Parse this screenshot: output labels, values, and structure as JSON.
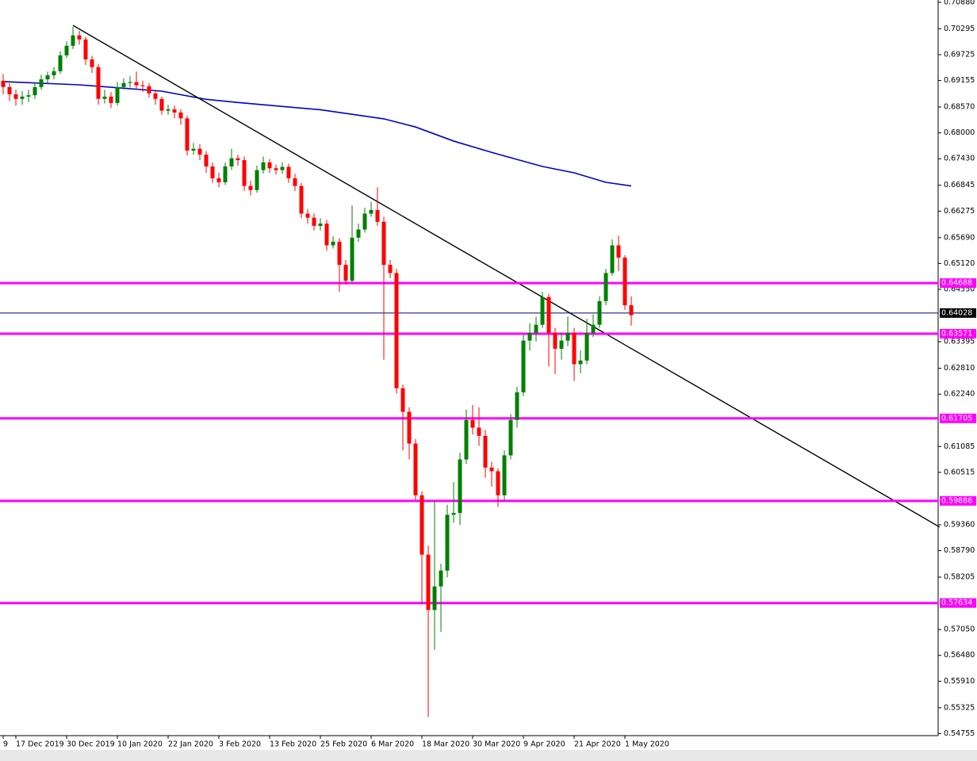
{
  "chart_data": {
    "type": "candlestick",
    "categories": [
      "9",
      null,
      "17 Dec 2019",
      null,
      null,
      null,
      null,
      null,
      null,
      null,
      "30 Dec 2019",
      null,
      null,
      null,
      null,
      null,
      null,
      null,
      "10 Jan 2020",
      null,
      null,
      null,
      null,
      null,
      null,
      null,
      "22 Jan 2020",
      null,
      null,
      null,
      null,
      null,
      null,
      null,
      "3 Feb 2020",
      null,
      null,
      null,
      null,
      null,
      null,
      null,
      "13 Feb 2020",
      null,
      null,
      null,
      null,
      null,
      null,
      null,
      "25 Feb 2020",
      null,
      null,
      null,
      null,
      null,
      null,
      null,
      "6 Mar 2020",
      null,
      null,
      null,
      null,
      null,
      null,
      null,
      "18 Mar 2020",
      null,
      null,
      null,
      null,
      null,
      null,
      null,
      "30 Mar 2020",
      null,
      null,
      null,
      null,
      null,
      null,
      null,
      "9 Apr 2020",
      null,
      null,
      null,
      null,
      null,
      null,
      null,
      "21 Apr 2020",
      null,
      null,
      null,
      null,
      null,
      null,
      null,
      "1 May 2020",
      null
    ],
    "open": [
      0.6915,
      0.6901,
      0.6885,
      0.6875,
      0.688,
      0.6883,
      0.6901,
      0.6918,
      0.6927,
      0.6936,
      0.6971,
      0.6992,
      0.7015,
      0.7006,
      0.6962,
      0.6945,
      0.6875,
      0.688,
      0.6866,
      0.6901,
      0.691,
      0.6912,
      0.6905,
      0.6903,
      0.6887,
      0.6875,
      0.6849,
      0.6852,
      0.6845,
      0.6832,
      0.6761,
      0.6765,
      0.6752,
      0.6726,
      0.67,
      0.6691,
      0.6726,
      0.6744,
      0.674,
      0.6683,
      0.6674,
      0.6718,
      0.6735,
      0.6722,
      0.6718,
      0.6725,
      0.67,
      0.6683,
      0.6622,
      0.6613,
      0.6595,
      0.66,
      0.6552,
      0.656,
      0.6509,
      0.6474,
      0.6569,
      0.6587,
      0.6622,
      0.663,
      0.6604,
      0.6509,
      0.6491,
      0.6237,
      0.6185,
      0.6115,
      0.6001,
      0.587,
      0.5748,
      0.58,
      0.5835,
      0.5958,
      0.5962,
      0.608,
      0.6167,
      0.615,
      0.6132,
      0.6062,
      0.6054,
      0.6001,
      0.6089,
      0.6167,
      0.6228,
      0.6342,
      0.6359,
      0.6377,
      0.6438,
      0.6359,
      0.6324,
      0.6342,
      0.6359,
      0.629,
      0.6298,
      0.6359,
      0.6377,
      0.6429,
      0.6491,
      0.6552,
      0.6525,
      0.642
    ],
    "high": [
      0.693,
      0.691,
      0.6895,
      0.6892,
      0.6895,
      0.6912,
      0.6928,
      0.6935,
      0.6945,
      0.698,
      0.7002,
      0.7034,
      0.7025,
      0.7012,
      0.697,
      0.6952,
      0.6895,
      0.689,
      0.6912,
      0.692,
      0.6925,
      0.6935,
      0.6915,
      0.691,
      0.6895,
      0.688,
      0.6862,
      0.686,
      0.6852,
      0.6838,
      0.6778,
      0.6775,
      0.676,
      0.6735,
      0.6712,
      0.6735,
      0.6765,
      0.6752,
      0.6748,
      0.6695,
      0.6728,
      0.6748,
      0.6742,
      0.673,
      0.6735,
      0.6732,
      0.671,
      0.669,
      0.6632,
      0.6622,
      0.6612,
      0.6608,
      0.6572,
      0.6568,
      0.652,
      0.664,
      0.66,
      0.6635,
      0.6648,
      0.668,
      0.6615,
      0.652,
      0.65,
      0.6245,
      0.6195,
      0.6125,
      0.601,
      0.589,
      0.599,
      0.585,
      0.598,
      0.603,
      0.6095,
      0.619,
      0.62,
      0.6195,
      0.6145,
      0.6075,
      0.606,
      0.61,
      0.618,
      0.624,
      0.6355,
      0.638,
      0.6395,
      0.645,
      0.6445,
      0.637,
      0.636,
      0.6395,
      0.637,
      0.632,
      0.639,
      0.64,
      0.644,
      0.65,
      0.6565,
      0.6573,
      0.653,
      0.644
    ],
    "low": [
      0.6885,
      0.687,
      0.686,
      0.6862,
      0.6868,
      0.6875,
      0.6895,
      0.691,
      0.6918,
      0.693,
      0.6965,
      0.6985,
      0.6995,
      0.695,
      0.6932,
      0.6862,
      0.6865,
      0.6855,
      0.686,
      0.6895,
      0.69,
      0.6895,
      0.689,
      0.6878,
      0.6862,
      0.684,
      0.684,
      0.6832,
      0.6818,
      0.675,
      0.6752,
      0.674,
      0.6712,
      0.669,
      0.668,
      0.6685,
      0.6718,
      0.6728,
      0.6672,
      0.6662,
      0.6668,
      0.671,
      0.6712,
      0.6708,
      0.671,
      0.669,
      0.6672,
      0.6612,
      0.66,
      0.6585,
      0.6585,
      0.654,
      0.6545,
      0.645,
      0.6465,
      0.647,
      0.656,
      0.658,
      0.6615,
      0.6595,
      0.63,
      0.648,
      0.6225,
      0.61,
      0.608,
      0.599,
      0.576,
      0.5512,
      0.566,
      0.57,
      0.582,
      0.594,
      0.5935,
      0.607,
      0.6135,
      0.611,
      0.604,
      0.602,
      0.5975,
      0.599,
      0.608,
      0.615,
      0.622,
      0.632,
      0.634,
      0.637,
      0.6285,
      0.6268,
      0.63,
      0.633,
      0.6253,
      0.627,
      0.629,
      0.635,
      0.637,
      0.642,
      0.6485,
      0.6495,
      0.641,
      0.6375
    ],
    "close": [
      0.6901,
      0.6885,
      0.6875,
      0.688,
      0.6883,
      0.6901,
      0.6918,
      0.6927,
      0.6936,
      0.6971,
      0.6992,
      0.7015,
      0.7006,
      0.6962,
      0.6945,
      0.6875,
      0.688,
      0.6866,
      0.6901,
      0.691,
      0.6912,
      0.6905,
      0.6903,
      0.6887,
      0.6875,
      0.6849,
      0.6852,
      0.6845,
      0.6832,
      0.6761,
      0.6765,
      0.6752,
      0.6726,
      0.67,
      0.6691,
      0.6726,
      0.6744,
      0.674,
      0.6683,
      0.6674,
      0.6718,
      0.6735,
      0.6722,
      0.6718,
      0.6725,
      0.67,
      0.6683,
      0.6622,
      0.6613,
      0.6595,
      0.66,
      0.6552,
      0.656,
      0.6509,
      0.6474,
      0.6569,
      0.6587,
      0.6622,
      0.663,
      0.6604,
      0.6509,
      0.6491,
      0.6237,
      0.6185,
      0.6115,
      0.6001,
      0.587,
      0.5748,
      0.58,
      0.5835,
      0.5958,
      0.5962,
      0.608,
      0.6167,
      0.615,
      0.6132,
      0.6062,
      0.6054,
      0.6001,
      0.6089,
      0.6167,
      0.6228,
      0.6342,
      0.6359,
      0.6377,
      0.6438,
      0.6359,
      0.6324,
      0.6342,
      0.6359,
      0.629,
      0.6298,
      0.6359,
      0.6377,
      0.6429,
      0.6491,
      0.6552,
      0.6525,
      0.642,
      0.6398
    ],
    "up_color": "#008000",
    "down_color": "#ff0000",
    "ylim": [
      0.5471,
      0.7093
    ],
    "yticks": [
      {
        "value": 0.7088,
        "label": "0.70880"
      },
      0.70295,
      0.69725,
      0.69155,
      {
        "value": 0.6857,
        "label": "0.68570"
      },
      {
        "value": 0.68,
        "label": "0.68000"
      },
      {
        "value": 0.6743,
        "label": "0.67430"
      },
      0.66845,
      0.66275,
      {
        "value": 0.6569,
        "label": "0.65690"
      },
      {
        "value": 0.6512,
        "label": "0.65120"
      },
      {
        "value": 0.6455,
        "label": "0.64550"
      },
      0.63395,
      {
        "value": 0.6281,
        "label": "0.62810"
      },
      {
        "value": 0.6224,
        "label": "0.62240"
      },
      0.61085,
      0.60515,
      {
        "value": 0.5936,
        "label": "0.59360"
      },
      {
        "value": 0.5879,
        "label": "0.58790"
      },
      0.58205,
      {
        "value": 0.5705,
        "label": "0.57050"
      },
      {
        "value": 0.5648,
        "label": "0.56480"
      },
      {
        "value": 0.5591,
        "label": "0.55910"
      },
      0.55325,
      0.54755
    ],
    "moving_average": {
      "color": "#0000cd",
      "x": [
        0,
        12,
        25,
        32,
        37,
        50,
        60,
        65,
        71,
        77,
        85,
        90,
        95,
        99
      ],
      "values": [
        0.6913,
        0.6906,
        0.6892,
        0.6874,
        0.6867,
        0.6851,
        0.6831,
        0.6813,
        0.6782,
        0.6757,
        0.6726,
        0.6712,
        0.6691,
        0.6683
      ]
    },
    "trendline": {
      "color": "#000000",
      "x": [
        11,
        147.6
      ],
      "values": [
        0.7037,
        0.5931
      ]
    },
    "levels": [
      0.64688,
      0.63571,
      0.61705,
      0.59886,
      0.57634
    ],
    "level_color": "#ff00ff",
    "current_price": {
      "value": 0.64028,
      "color": "#000080"
    }
  }
}
